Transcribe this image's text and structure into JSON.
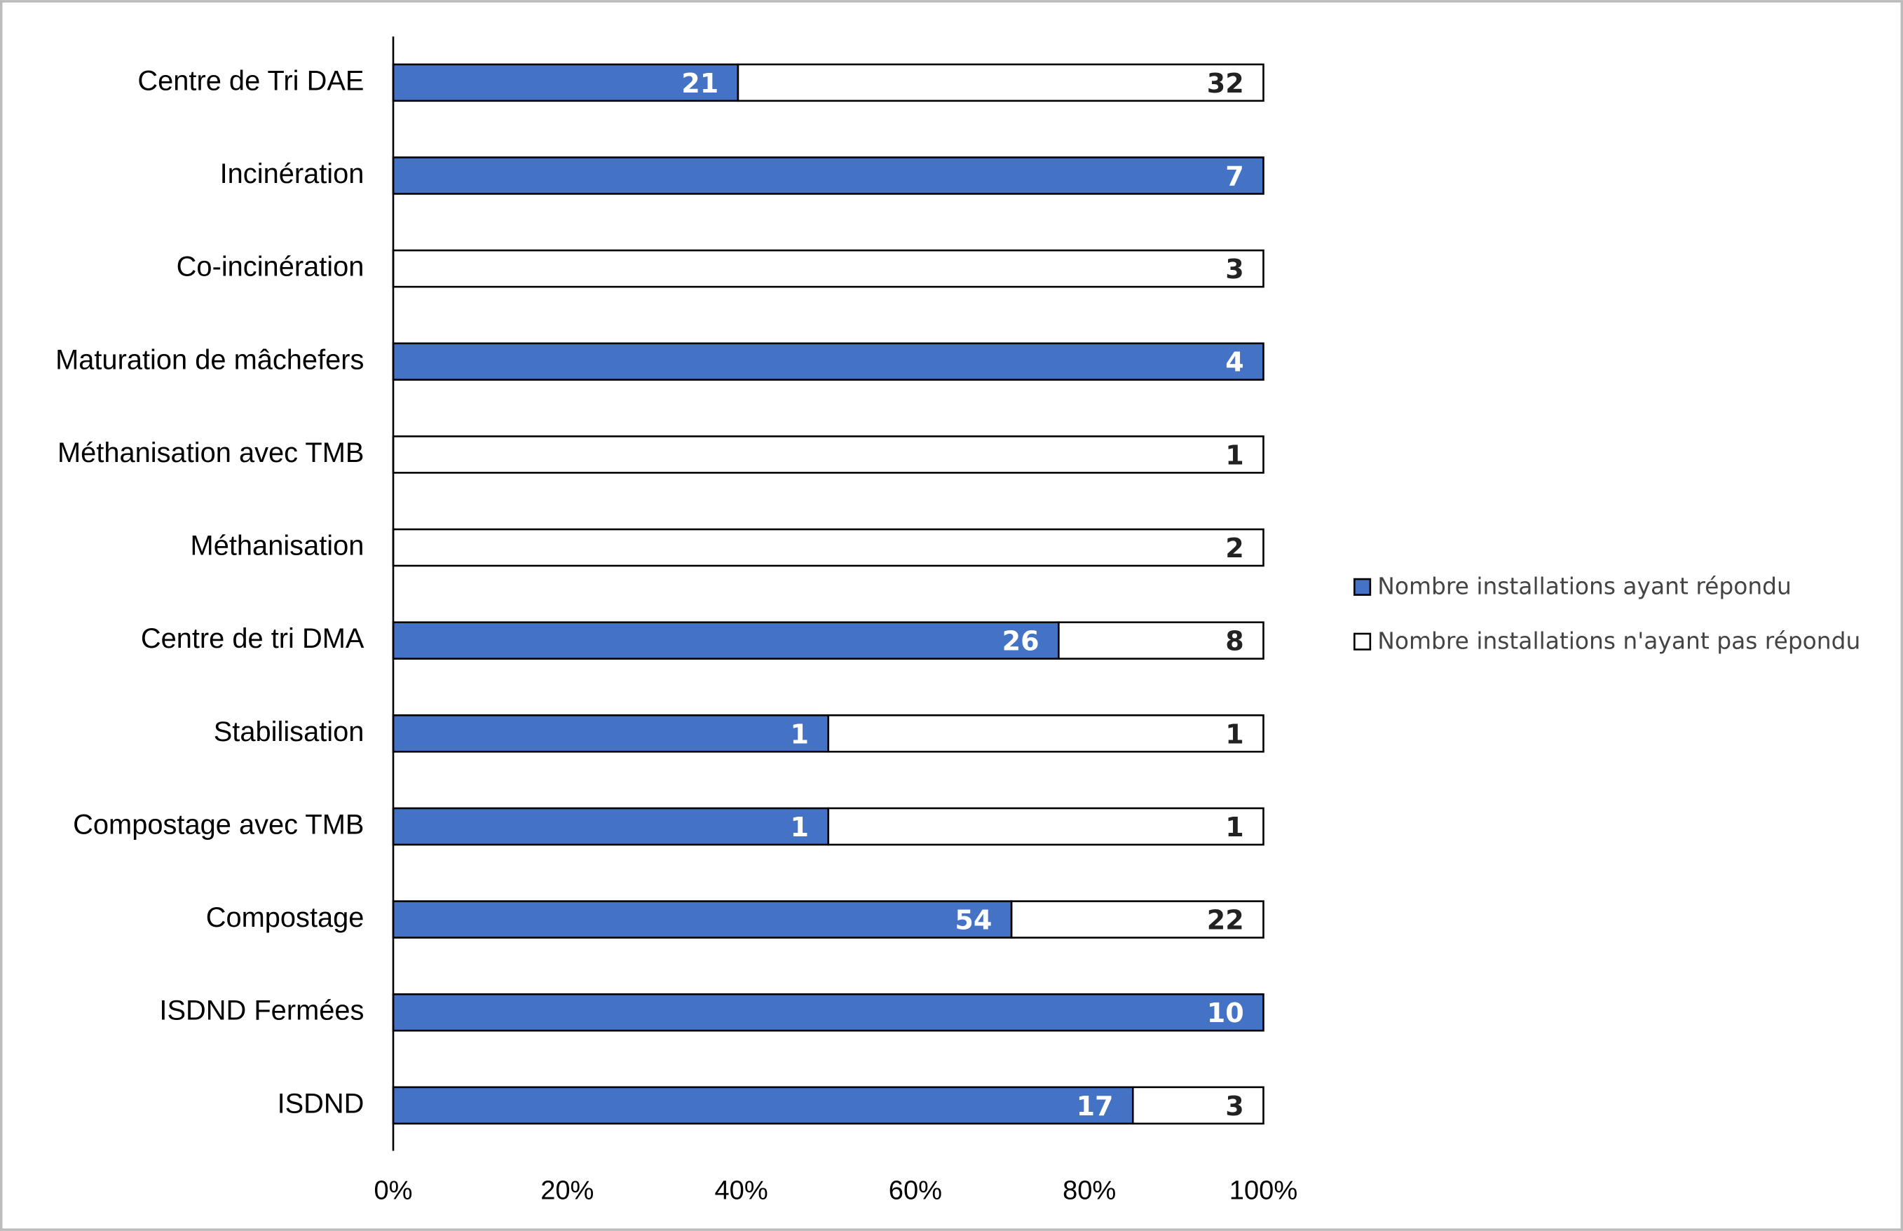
{
  "chart_data": {
    "type": "bar",
    "orientation": "horizontal",
    "stacked": "percent",
    "categories": [
      "Centre de Tri DAE",
      "Incinération",
      "Co-incinération",
      "Maturation de mâchefers",
      "Méthanisation avec TMB",
      "Méthanisation",
      "Centre de tri DMA",
      "Stabilisation",
      "Compostage avec TMB",
      "Compostage",
      "ISDND Fermées",
      "ISDND"
    ],
    "series": [
      {
        "name": "Nombre installations ayant répondu",
        "color": "#4472c4",
        "values": [
          21,
          7,
          0,
          4,
          0,
          0,
          26,
          1,
          1,
          54,
          10,
          17
        ]
      },
      {
        "name": "Nombre installations n'ayant pas répondu",
        "color": "#ffffff",
        "values": [
          32,
          0,
          3,
          0,
          1,
          2,
          8,
          1,
          1,
          22,
          0,
          3
        ]
      }
    ],
    "xlim": [
      0,
      100
    ],
    "xticks": [
      {
        "value": 0,
        "label": "0%"
      },
      {
        "value": 20,
        "label": "20%"
      },
      {
        "value": 40,
        "label": "40%"
      },
      {
        "value": 60,
        "label": "60%"
      },
      {
        "value": 80,
        "label": "80%"
      },
      {
        "value": 100,
        "label": "100%"
      }
    ],
    "legend": "right"
  }
}
